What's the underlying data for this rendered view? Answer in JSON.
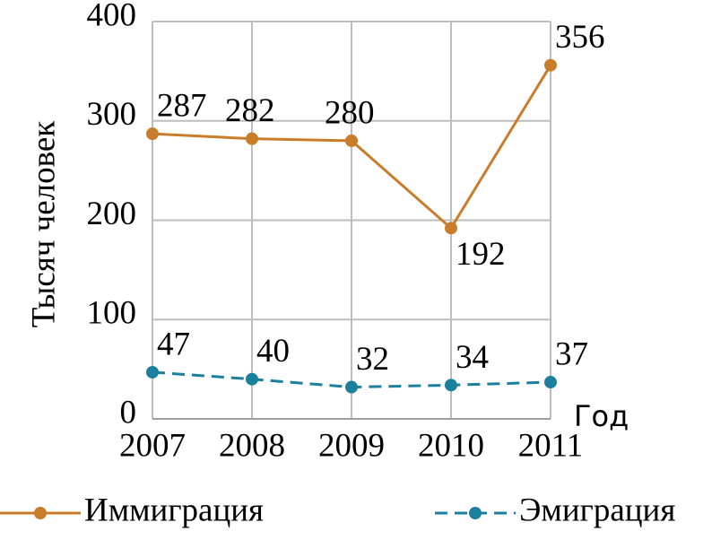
{
  "chart_data": {
    "type": "line",
    "x_label": "Год",
    "y_label": "Тысяч человек",
    "x": [
      2007,
      2008,
      2009,
      2010,
      2011
    ],
    "xlim": [
      2007,
      2011
    ],
    "xticks": [
      2007,
      2008,
      2009,
      2010,
      2011
    ],
    "ylim": [
      0,
      400
    ],
    "yticks": [
      0,
      100,
      200,
      300,
      400
    ],
    "grid": true,
    "series": [
      {
        "name": "Иммиграция",
        "color": "#c97d2b",
        "dashed": false,
        "values": [
          287,
          282,
          280,
          192,
          356
        ]
      },
      {
        "name": "Эмиграция",
        "color": "#1b7f9e",
        "dashed": true,
        "values": [
          47,
          40,
          32,
          34,
          37
        ]
      }
    ]
  }
}
